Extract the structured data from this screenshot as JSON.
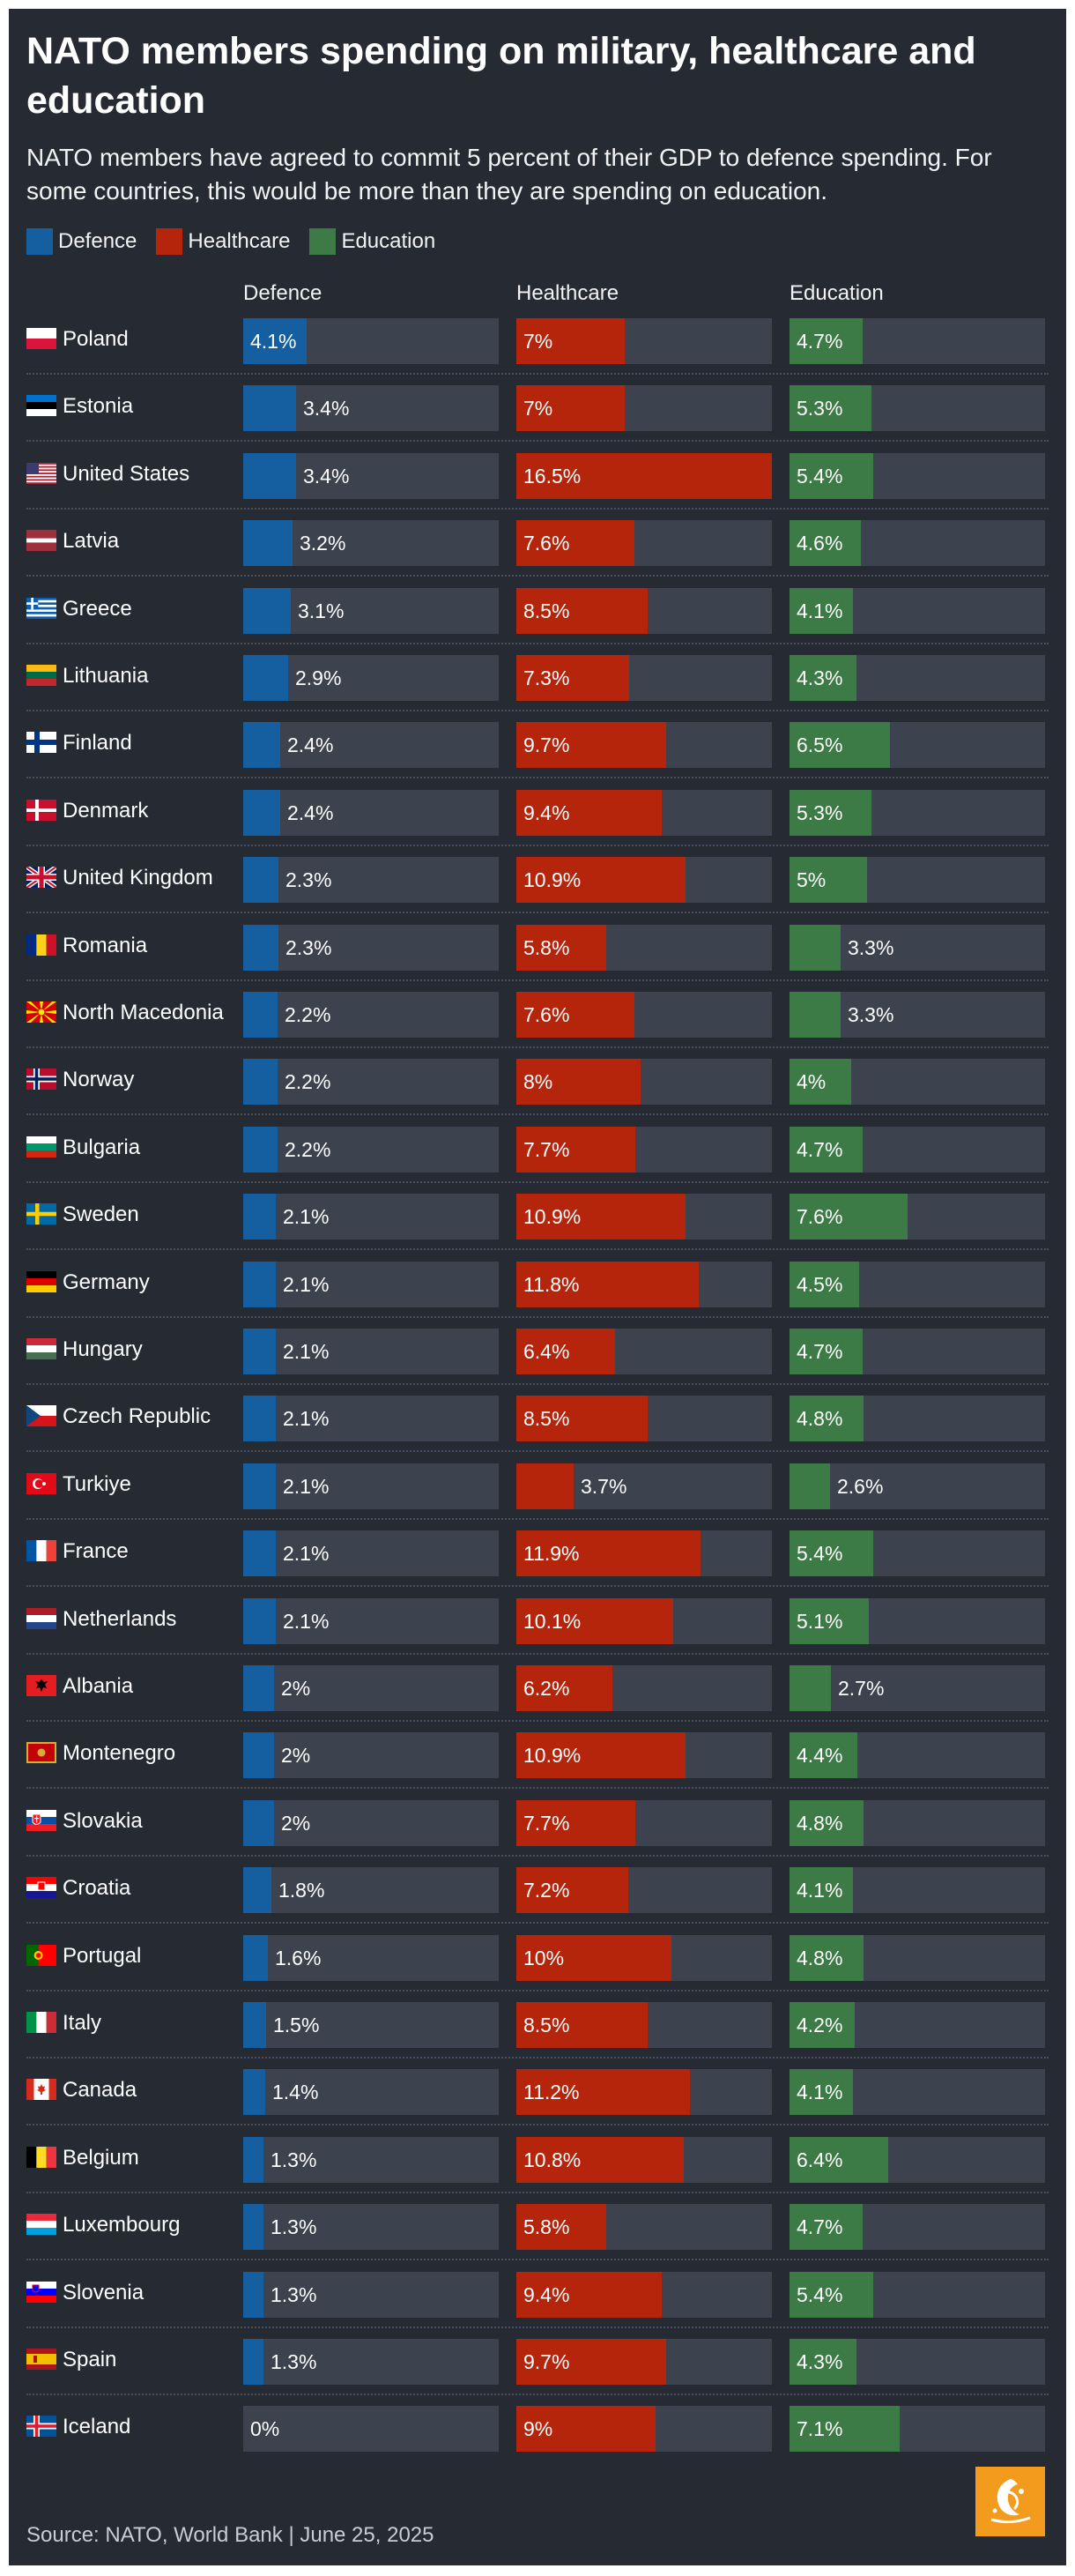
{
  "title": "NATO members spending on military, healthcare and education",
  "subtitle": "NATO members have agreed to commit 5 percent of their GDP to defence spending. For some countries, this would be more than they are spending on education.",
  "source": "Source: NATO, World Bank | June 25, 2025",
  "logo": {
    "icon": "al-jazeera-logo-icon"
  },
  "colors": {
    "background": "#252a33",
    "track": "#3c424e",
    "defence": "#155fa0",
    "healthcare": "#b5250c",
    "education": "#3c7b45"
  },
  "chart_data": {
    "type": "bar",
    "unit": "% of GDP",
    "legend": [
      "Defence",
      "Healthcare",
      "Education"
    ],
    "columns": [
      "Defence",
      "Healthcare",
      "Education"
    ],
    "xlim": [
      0,
      16.5
    ],
    "categories": [
      "Poland",
      "Estonia",
      "United States",
      "Latvia",
      "Greece",
      "Lithuania",
      "Finland",
      "Denmark",
      "United Kingdom",
      "Romania",
      "North Macedonia",
      "Norway",
      "Bulgaria",
      "Sweden",
      "Germany",
      "Hungary",
      "Czech Republic",
      "Turkiye",
      "France",
      "Netherlands",
      "Albania",
      "Montenegro",
      "Slovakia",
      "Croatia",
      "Portugal",
      "Italy",
      "Canada",
      "Belgium",
      "Luxembourg",
      "Slovenia",
      "Spain",
      "Iceland"
    ],
    "series": [
      {
        "name": "Defence",
        "values": [
          4.1,
          3.4,
          3.4,
          3.2,
          3.1,
          2.9,
          2.4,
          2.4,
          2.3,
          2.3,
          2.2,
          2.2,
          2.2,
          2.1,
          2.1,
          2.1,
          2.1,
          2.1,
          2.1,
          2.1,
          2,
          2,
          2,
          1.8,
          1.6,
          1.5,
          1.4,
          1.3,
          1.3,
          1.3,
          1.3,
          0
        ]
      },
      {
        "name": "Healthcare",
        "values": [
          7,
          7,
          16.5,
          7.6,
          8.5,
          7.3,
          9.7,
          9.4,
          10.9,
          5.8,
          7.6,
          8,
          7.7,
          10.9,
          11.8,
          6.4,
          8.5,
          3.7,
          11.9,
          10.1,
          6.2,
          10.9,
          7.7,
          7.2,
          10,
          8.5,
          11.2,
          10.8,
          5.8,
          9.4,
          9.7,
          9
        ]
      },
      {
        "name": "Education",
        "values": [
          4.7,
          5.3,
          5.4,
          4.6,
          4.1,
          4.3,
          6.5,
          5.3,
          5,
          3.3,
          3.3,
          4,
          4.7,
          7.6,
          4.5,
          4.7,
          4.8,
          2.6,
          5.4,
          5.1,
          2.7,
          4.4,
          4.8,
          4.1,
          4.8,
          4.2,
          4.1,
          6.4,
          4.7,
          5.4,
          4.3,
          7.1
        ]
      }
    ],
    "labels": [
      [
        "4.1%",
        "3.4%",
        "3.4%",
        "3.2%",
        "3.1%",
        "2.9%",
        "2.4%",
        "2.4%",
        "2.3%",
        "2.3%",
        "2.2%",
        "2.2%",
        "2.2%",
        "2.1%",
        "2.1%",
        "2.1%",
        "2.1%",
        "2.1%",
        "2.1%",
        "2.1%",
        "2%",
        "2%",
        "2%",
        "1.8%",
        "1.6%",
        "1.5%",
        "1.4%",
        "1.3%",
        "1.3%",
        "1.3%",
        "1.3%",
        "0%"
      ],
      [
        "7%",
        "7%",
        "16.5%",
        "7.6%",
        "8.5%",
        "7.3%",
        "9.7%",
        "9.4%",
        "10.9%",
        "5.8%",
        "7.6%",
        "8%",
        "7.7%",
        "10.9%",
        "11.8%",
        "6.4%",
        "8.5%",
        "3.7%",
        "11.9%",
        "10.1%",
        "6.2%",
        "10.9%",
        "7.7%",
        "7.2%",
        "10%",
        "8.5%",
        "11.2%",
        "10.8%",
        "5.8%",
        "9.4%",
        "9.7%",
        "9%"
      ],
      [
        "4.7%",
        "5.3%",
        "5.4%",
        "4.6%",
        "4.1%",
        "4.3%",
        "6.5%",
        "5.3%",
        "5%",
        "3.3%",
        "3.3%",
        "4%",
        "4.7%",
        "7.6%",
        "4.5%",
        "4.7%",
        "4.8%",
        "2.6%",
        "5.4%",
        "5.1%",
        "2.7%",
        "4.4%",
        "4.8%",
        "4.1%",
        "4.8%",
        "4.2%",
        "4.1%",
        "6.4%",
        "4.7%",
        "5.4%",
        "4.3%",
        "7.1%"
      ]
    ],
    "flags": [
      "poland-flag-icon",
      "estonia-flag-icon",
      "united-states-flag-icon",
      "latvia-flag-icon",
      "greece-flag-icon",
      "lithuania-flag-icon",
      "finland-flag-icon",
      "denmark-flag-icon",
      "united-kingdom-flag-icon",
      "romania-flag-icon",
      "north-macedonia-flag-icon",
      "norway-flag-icon",
      "bulgaria-flag-icon",
      "sweden-flag-icon",
      "germany-flag-icon",
      "hungary-flag-icon",
      "czech-republic-flag-icon",
      "turkiye-flag-icon",
      "france-flag-icon",
      "netherlands-flag-icon",
      "albania-flag-icon",
      "montenegro-flag-icon",
      "slovakia-flag-icon",
      "croatia-flag-icon",
      "portugal-flag-icon",
      "italy-flag-icon",
      "canada-flag-icon",
      "belgium-flag-icon",
      "luxembourg-flag-icon",
      "slovenia-flag-icon",
      "spain-flag-icon",
      "iceland-flag-icon"
    ]
  }
}
